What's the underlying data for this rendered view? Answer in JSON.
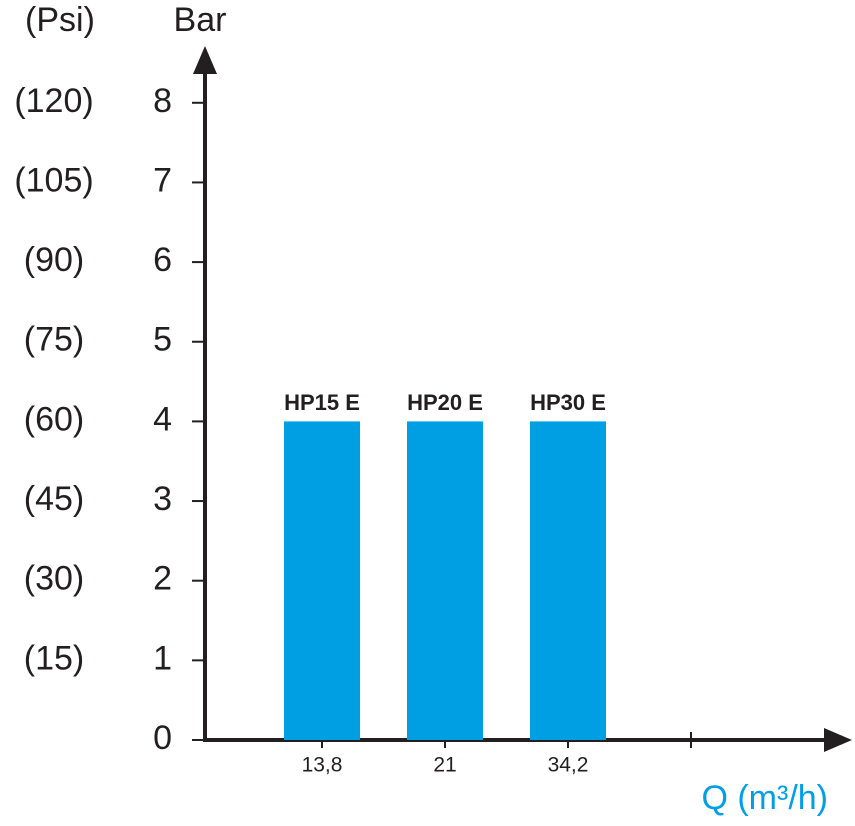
{
  "chart_data": {
    "type": "bar",
    "y_label": "Bar",
    "y2_label": "(Psi)",
    "x_label": "Q (m³/h)",
    "categories": [
      "13,8",
      "21",
      "34,2",
      null
    ],
    "values": [
      4,
      4,
      4,
      null
    ],
    "labels": [
      "HP15 E",
      "HP20 E",
      "HP30 E",
      null
    ],
    "color": "#009fe3",
    "ylim": [
      0,
      8.6
    ],
    "yticks": [
      0,
      1,
      2,
      3,
      4,
      5,
      6,
      7,
      8
    ],
    "y2lim": [
      0,
      129
    ],
    "y2ticks": [
      {
        "value": 15,
        "label": "(15)"
      },
      {
        "value": 30,
        "label": "(30)"
      },
      {
        "value": 45,
        "label": "(45)"
      },
      {
        "value": 60,
        "label": "(60)"
      },
      {
        "value": 75,
        "label": "(75)"
      },
      {
        "value": 90,
        "label": "(90)"
      },
      {
        "value": 105,
        "label": "(105)"
      },
      {
        "value": 120,
        "label": "(120)"
      }
    ]
  }
}
